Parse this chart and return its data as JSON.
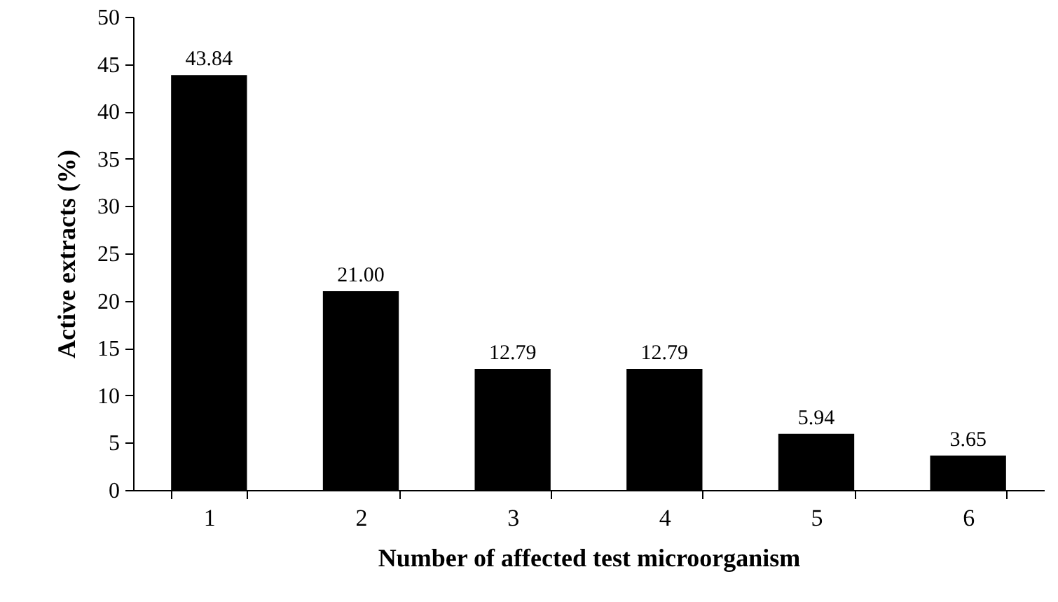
{
  "chart_data": {
    "type": "bar",
    "xlabel": "Number of affected test microorganism",
    "ylabel": "Active  extracts (%)",
    "categories": [
      "1",
      "2",
      "3",
      "4",
      "5",
      "6"
    ],
    "values": [
      43.84,
      21.0,
      12.79,
      12.79,
      5.94,
      3.65
    ],
    "value_labels": [
      "43.84",
      "21.00",
      "12.79",
      "12.79",
      "5.94",
      "3.65"
    ],
    "color": "#000000",
    "ylim": [
      0,
      50
    ],
    "yticks": [
      0,
      5,
      10,
      15,
      20,
      25,
      30,
      35,
      40,
      45,
      50
    ]
  }
}
